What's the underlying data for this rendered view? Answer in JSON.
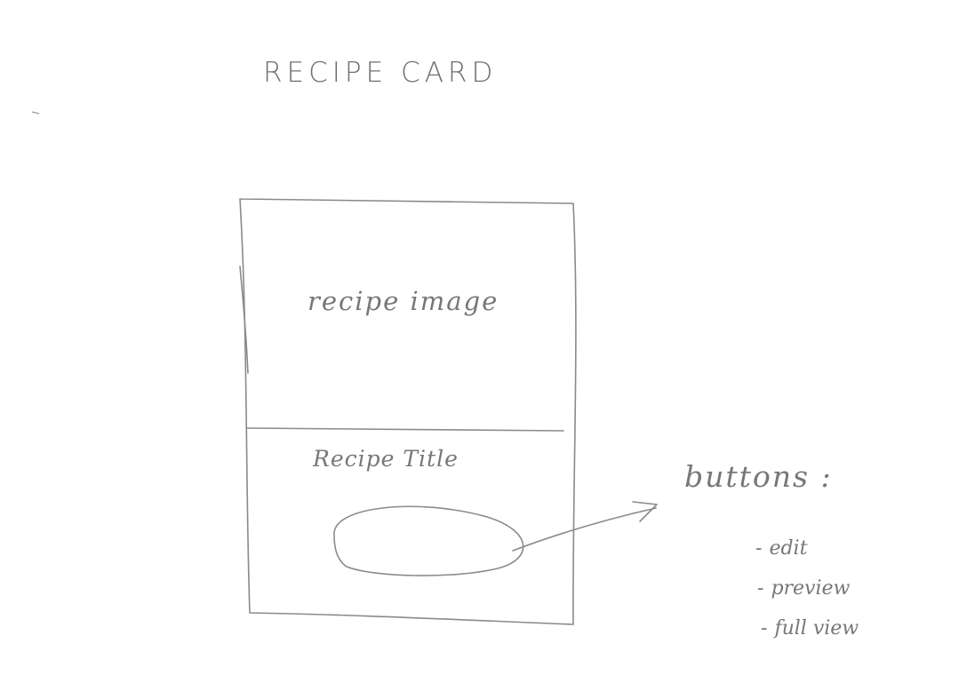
{
  "heading": "RECIPE CARD",
  "card": {
    "image_label": "recipe image",
    "title_label": "Recipe Title"
  },
  "buttons_note": {
    "heading": "buttons :",
    "items": [
      "edit",
      "preview",
      "full view"
    ],
    "bullet": "-"
  }
}
